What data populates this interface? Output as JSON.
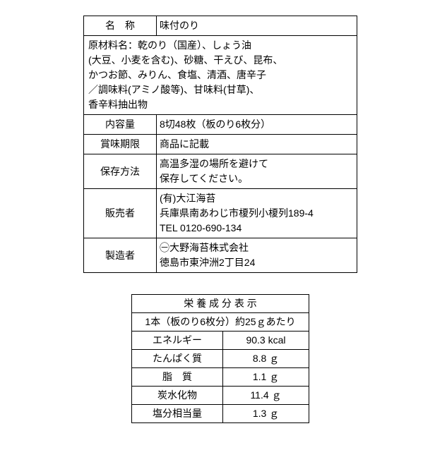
{
  "main": {
    "name_label": "名　称",
    "name_value": "味付のり",
    "ingredients_l1": "原材料名：乾のり（国産）、しょう油",
    "ingredients_l2": "(大豆、小麦を含む)、砂糖、干えび、昆布、",
    "ingredients_l3": "かつお節、みりん、食塩、清酒、唐辛子",
    "ingredients_l4": "／調味料(アミノ酸等)、甘味料(甘草)、",
    "ingredients_l5": "香辛料抽出物",
    "volume_label": "内容量",
    "volume_value": "8切48枚（板のり6枚分）",
    "expiry_label": "賞味期限",
    "expiry_value": "商品に記載",
    "storage_label": "保存方法",
    "storage_l1": "高温多湿の場所を避けて",
    "storage_l2": "保存してください。",
    "seller_label": "販売者",
    "seller_l1": "(有)大江海苔",
    "seller_l2": "兵庫県南あわじ市榎列小榎列189-4",
    "seller_l3": "TEL 0120-690-134",
    "maker_label": "製造者",
    "maker_l1": "㊀大野海苔株式会社",
    "maker_l2": "徳島市東沖洲2丁目24"
  },
  "nutrition": {
    "title": "栄 養 成 分 表 示",
    "per": "1本（板のり6枚分）約25ｇあたり",
    "rows": [
      {
        "label": "エネルギー",
        "value": "90.3 kcal"
      },
      {
        "label": "たんぱく質",
        "value": "8.8 ｇ"
      },
      {
        "label": "脂　質",
        "value": "1.1 ｇ"
      },
      {
        "label": "炭水化物",
        "value": "11.4 ｇ"
      },
      {
        "label": "塩分相当量",
        "value": "1.3 ｇ"
      }
    ]
  }
}
